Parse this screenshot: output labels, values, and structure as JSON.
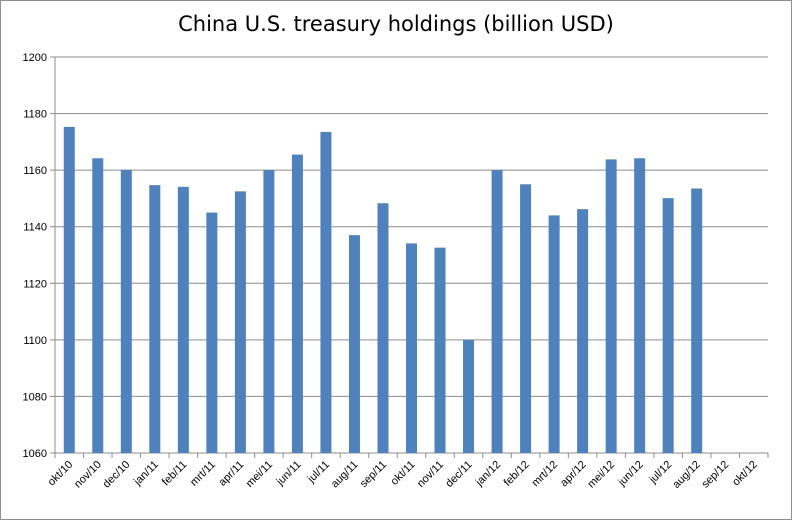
{
  "chart_data": {
    "type": "bar",
    "title": "China U.S. treasury holdings (billion USD)",
    "xlabel": "",
    "ylabel": "",
    "ylim": [
      1060,
      1200
    ],
    "yticks": [
      1060,
      1080,
      1100,
      1120,
      1140,
      1160,
      1180,
      1200
    ],
    "grid": true,
    "legend": "none",
    "bar_color": "#4f81bd",
    "categories": [
      "okt/10",
      "nov/10",
      "dec/10",
      "jan/11",
      "feb/11",
      "mrt/11",
      "apr/11",
      "mei/11",
      "jun/11",
      "jul/11",
      "aug/11",
      "sep/11",
      "okt/11",
      "nov/11",
      "dec/11",
      "jan/12",
      "feb/12",
      "mrt/12",
      "apr/12",
      "mei/12",
      "jun/12",
      "jul/12",
      "aug/12",
      "sep/12",
      "okt/12"
    ],
    "values": [
      1175.3,
      1164.2,
      1160.1,
      1154.7,
      1154.1,
      1145.0,
      1152.5,
      1160.0,
      1165.5,
      1173.5,
      1137.0,
      1148.3,
      1134.1,
      1132.6,
      1100.0,
      1160.0,
      1155.0,
      1144.0,
      1146.2,
      1163.8,
      1164.2,
      1150.1,
      1153.5,
      null,
      null
    ]
  }
}
